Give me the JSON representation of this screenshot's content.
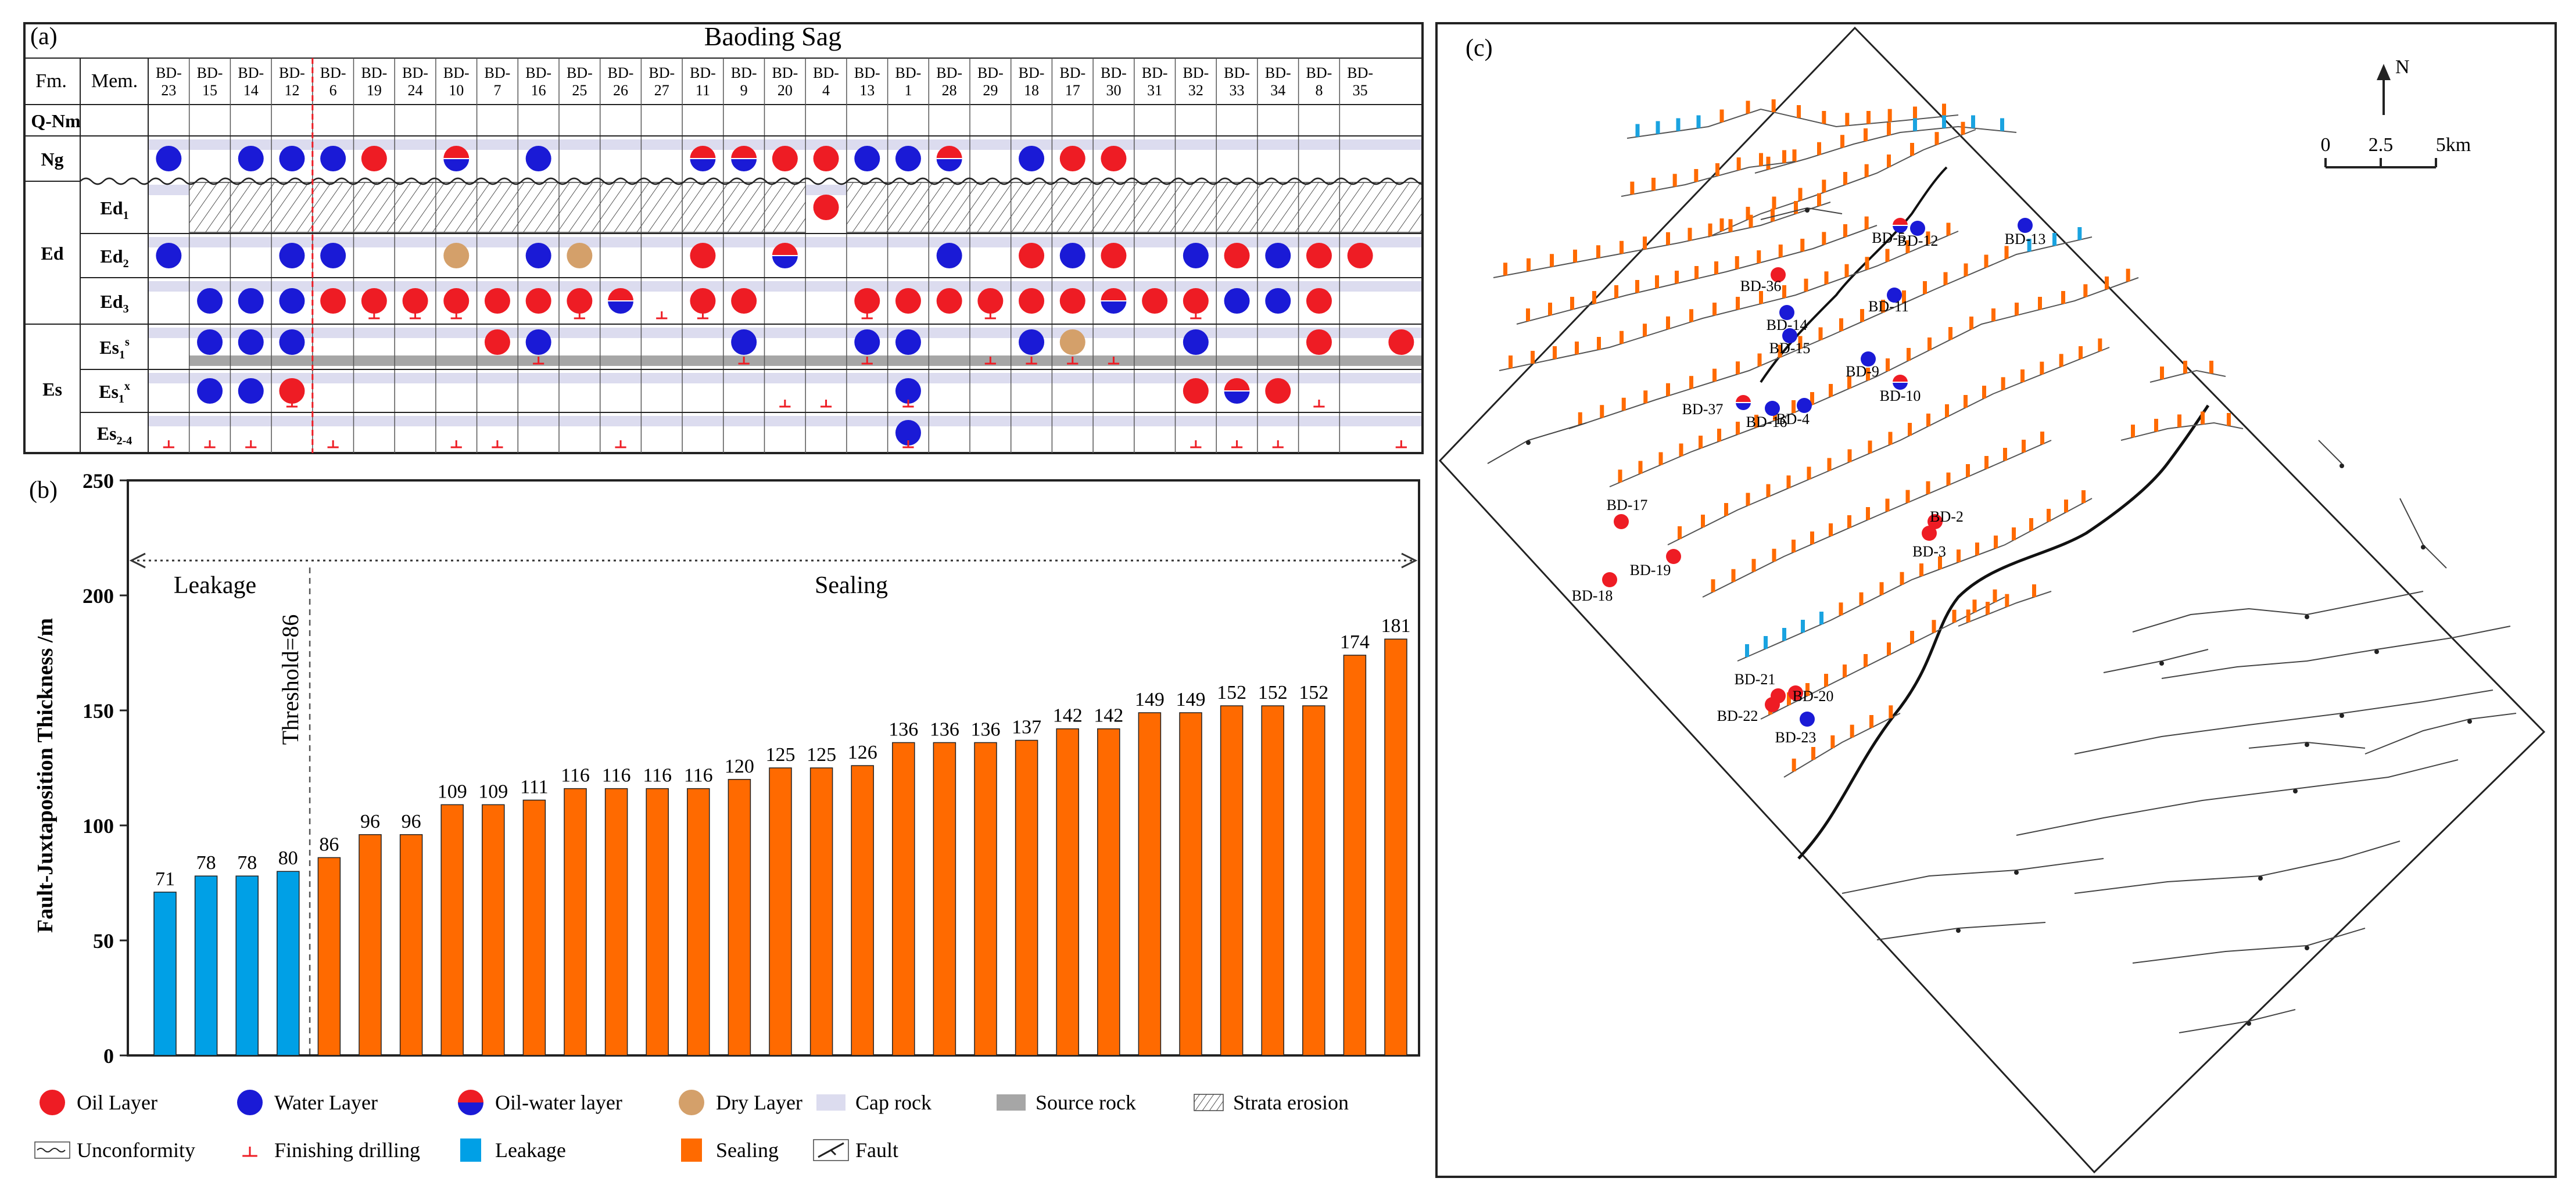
{
  "panel_a": {
    "label": "(a)",
    "title": "Baoding Sag",
    "header_fm": "Fm.",
    "header_mem": "Mem.",
    "wells": [
      "BD-23",
      "BD-15",
      "BD-14",
      "BD-12",
      "BD-6",
      "BD-19",
      "BD-24",
      "BD-10",
      "BD-7",
      "BD-16",
      "BD-25",
      "BD-26",
      "BD-27",
      "BD-11",
      "BD-9",
      "BD-20",
      "BD-4",
      "BD-13",
      "BD-1",
      "BD-28",
      "BD-29",
      "BD-18",
      "BD-17",
      "BD-30",
      "BD-31",
      "BD-32",
      "BD-33",
      "BD-34",
      "BD-8",
      "BD-35"
    ],
    "rows": [
      {
        "fm": "Q-Nm",
        "mem": ""
      },
      {
        "fm": "Ng",
        "mem": ""
      },
      {
        "fm": "",
        "mem": "Ed1"
      },
      {
        "fm": "Ed",
        "mem": "Ed2"
      },
      {
        "fm": "",
        "mem": "Ed3"
      },
      {
        "fm": "",
        "mem": "Es1s"
      },
      {
        "fm": "Es",
        "mem": "Es1x"
      },
      {
        "fm": "",
        "mem": "Es2-4"
      }
    ],
    "symbols": [
      {
        "row": 1,
        "col": 0,
        "t": "water"
      },
      {
        "row": 1,
        "col": 2,
        "t": "water"
      },
      {
        "row": 1,
        "col": 3,
        "t": "water"
      },
      {
        "row": 1,
        "col": 4,
        "t": "water"
      },
      {
        "row": 1,
        "col": 5,
        "t": "oil"
      },
      {
        "row": 1,
        "col": 7,
        "t": "mix"
      },
      {
        "row": 1,
        "col": 9,
        "t": "water"
      },
      {
        "row": 1,
        "col": 13,
        "t": "mix"
      },
      {
        "row": 1,
        "col": 14,
        "t": "mix"
      },
      {
        "row": 1,
        "col": 15,
        "t": "oil"
      },
      {
        "row": 1,
        "col": 16,
        "t": "oil"
      },
      {
        "row": 1,
        "col": 17,
        "t": "water"
      },
      {
        "row": 1,
        "col": 18,
        "t": "water"
      },
      {
        "row": 1,
        "col": 19,
        "t": "mix"
      },
      {
        "row": 1,
        "col": 21,
        "t": "water"
      },
      {
        "row": 1,
        "col": 22,
        "t": "oil"
      },
      {
        "row": 1,
        "col": 23,
        "t": "oil"
      },
      {
        "row": 2,
        "col": 16,
        "t": "oil"
      },
      {
        "row": 3,
        "col": 0,
        "t": "water"
      },
      {
        "row": 3,
        "col": 3,
        "t": "water"
      },
      {
        "row": 3,
        "col": 4,
        "t": "water"
      },
      {
        "row": 3,
        "col": 7,
        "t": "dry"
      },
      {
        "row": 3,
        "col": 9,
        "t": "water"
      },
      {
        "row": 3,
        "col": 10,
        "t": "dry"
      },
      {
        "row": 3,
        "col": 13,
        "t": "oil"
      },
      {
        "row": 3,
        "col": 15,
        "t": "mix"
      },
      {
        "row": 3,
        "col": 19,
        "t": "water"
      },
      {
        "row": 3,
        "col": 21,
        "t": "oil"
      },
      {
        "row": 3,
        "col": 22,
        "t": "water"
      },
      {
        "row": 3,
        "col": 23,
        "t": "oil"
      },
      {
        "row": 3,
        "col": 25,
        "t": "water"
      },
      {
        "row": 3,
        "col": 26,
        "t": "oil"
      },
      {
        "row": 3,
        "col": 27,
        "t": "water"
      },
      {
        "row": 3,
        "col": 28,
        "t": "oil"
      },
      {
        "row": 3,
        "col": 29,
        "t": "oil"
      },
      {
        "row": 4,
        "col": 1,
        "t": "water"
      },
      {
        "row": 4,
        "col": 2,
        "t": "water"
      },
      {
        "row": 4,
        "col": 3,
        "t": "water"
      },
      {
        "row": 4,
        "col": 4,
        "t": "oil"
      },
      {
        "row": 4,
        "col": 5,
        "t": "oil"
      },
      {
        "row": 4,
        "col": 6,
        "t": "oil"
      },
      {
        "row": 4,
        "col": 7,
        "t": "oil"
      },
      {
        "row": 4,
        "col": 8,
        "t": "oil"
      },
      {
        "row": 4,
        "col": 9,
        "t": "oil"
      },
      {
        "row": 4,
        "col": 10,
        "t": "oil"
      },
      {
        "row": 4,
        "col": 11,
        "t": "mix"
      },
      {
        "row": 4,
        "col": 13,
        "t": "oil"
      },
      {
        "row": 4,
        "col": 14,
        "t": "oil"
      },
      {
        "row": 4,
        "col": 17,
        "t": "oil"
      },
      {
        "row": 4,
        "col": 18,
        "t": "oil"
      },
      {
        "row": 4,
        "col": 19,
        "t": "oil"
      },
      {
        "row": 4,
        "col": 20,
        "t": "oil"
      },
      {
        "row": 4,
        "col": 21,
        "t": "oil"
      },
      {
        "row": 4,
        "col": 22,
        "t": "oil"
      },
      {
        "row": 4,
        "col": 23,
        "t": "mix"
      },
      {
        "row": 4,
        "col": 24,
        "t": "oil"
      },
      {
        "row": 4,
        "col": 25,
        "t": "oil"
      },
      {
        "row": 4,
        "col": 26,
        "t": "water"
      },
      {
        "row": 4,
        "col": 27,
        "t": "water"
      },
      {
        "row": 4,
        "col": 28,
        "t": "oil"
      },
      {
        "row": 5,
        "col": 1,
        "t": "water"
      },
      {
        "row": 5,
        "col": 2,
        "t": "water"
      },
      {
        "row": 5,
        "col": 3,
        "t": "water"
      },
      {
        "row": 5,
        "col": 8,
        "t": "oil"
      },
      {
        "row": 5,
        "col": 9,
        "t": "water"
      },
      {
        "row": 5,
        "col": 14,
        "t": "water"
      },
      {
        "row": 5,
        "col": 17,
        "t": "water"
      },
      {
        "row": 5,
        "col": 18,
        "t": "water"
      },
      {
        "row": 5,
        "col": 21,
        "t": "water"
      },
      {
        "row": 5,
        "col": 22,
        "t": "dry"
      },
      {
        "row": 5,
        "col": 25,
        "t": "water"
      },
      {
        "row": 5,
        "col": 28,
        "t": "oil"
      },
      {
        "row": 5,
        "col": 30,
        "t": "oil"
      },
      {
        "row": 6,
        "col": 1,
        "t": "water"
      },
      {
        "row": 6,
        "col": 2,
        "t": "water"
      },
      {
        "row": 6,
        "col": 3,
        "t": "oil"
      },
      {
        "row": 6,
        "col": 18,
        "t": "water"
      },
      {
        "row": 6,
        "col": 25,
        "t": "oil"
      },
      {
        "row": 6,
        "col": 26,
        "t": "mix"
      },
      {
        "row": 6,
        "col": 27,
        "t": "oil"
      },
      {
        "row": 7,
        "col": 18,
        "t": "water"
      }
    ],
    "drill_marks": [
      {
        "row": 4,
        "col": 5
      },
      {
        "row": 4,
        "col": 6
      },
      {
        "row": 4,
        "col": 7
      },
      {
        "row": 4,
        "col": 10
      },
      {
        "row": 4,
        "col": 12
      },
      {
        "row": 4,
        "col": 13
      },
      {
        "row": 4,
        "col": 17
      },
      {
        "row": 4,
        "col": 20
      },
      {
        "row": 4,
        "col": 25
      },
      {
        "row": 5,
        "col": 9
      },
      {
        "row": 5,
        "col": 14
      },
      {
        "row": 5,
        "col": 17
      },
      {
        "row": 5,
        "col": 20
      },
      {
        "row": 5,
        "col": 21
      },
      {
        "row": 5,
        "col": 22
      },
      {
        "row": 5,
        "col": 23
      },
      {
        "row": 6,
        "col": 3
      },
      {
        "row": 6,
        "col": 15
      },
      {
        "row": 6,
        "col": 16
      },
      {
        "row": 6,
        "col": 18
      },
      {
        "row": 6,
        "col": 28
      },
      {
        "row": 7,
        "col": 0
      },
      {
        "row": 7,
        "col": 1
      },
      {
        "row": 7,
        "col": 2
      },
      {
        "row": 7,
        "col": 4
      },
      {
        "row": 7,
        "col": 7
      },
      {
        "row": 7,
        "col": 8
      },
      {
        "row": 7,
        "col": 11
      },
      {
        "row": 7,
        "col": 18
      },
      {
        "row": 7,
        "col": 25
      },
      {
        "row": 7,
        "col": 26
      },
      {
        "row": 7,
        "col": 27
      },
      {
        "row": 7,
        "col": 30
      }
    ]
  },
  "chart_data": {
    "type": "bar",
    "panel_label": "(b)",
    "ylabel": "Fault-Juxtaposition Thickness /m",
    "xlabel": "",
    "ylim": [
      0,
      250
    ],
    "yticks": [
      0,
      50,
      100,
      150,
      200,
      250
    ],
    "threshold": 86,
    "threshold_label": "Threshold=86",
    "region_left": "Leakage",
    "region_right": "Sealing",
    "series": [
      {
        "name": "Leakage",
        "color": "#00a0e6",
        "values": [
          71,
          78,
          78,
          80
        ]
      },
      {
        "name": "Sealing",
        "color": "#ff6a00",
        "values": [
          86,
          96,
          96,
          109,
          109,
          111,
          116,
          116,
          116,
          116,
          120,
          125,
          125,
          126,
          136,
          136,
          136,
          137,
          142,
          142,
          149,
          149,
          152,
          152,
          152,
          174,
          181
        ]
      }
    ]
  },
  "panel_c": {
    "label": "(c)",
    "north": "N",
    "scale_labels": [
      "0",
      "2.5",
      "5km"
    ],
    "wells": [
      {
        "name": "BD-5",
        "t": "mix"
      },
      {
        "name": "BD-12",
        "t": "water"
      },
      {
        "name": "BD-13",
        "t": "water"
      },
      {
        "name": "BD-36",
        "t": "oil"
      },
      {
        "name": "BD-11",
        "t": "water"
      },
      {
        "name": "BD-14",
        "t": "water"
      },
      {
        "name": "BD-15",
        "t": "water"
      },
      {
        "name": "BD-9",
        "t": "water"
      },
      {
        "name": "BD-37",
        "t": "mix"
      },
      {
        "name": "BD-16",
        "t": "water"
      },
      {
        "name": "BD-4",
        "t": "water"
      },
      {
        "name": "BD-10",
        "t": "mix"
      },
      {
        "name": "BD-17",
        "t": "oil"
      },
      {
        "name": "BD-2",
        "t": "oil"
      },
      {
        "name": "BD-3",
        "t": "oil"
      },
      {
        "name": "BD-19",
        "t": "oil"
      },
      {
        "name": "BD-18",
        "t": "oil"
      },
      {
        "name": "BD-21",
        "t": "oil"
      },
      {
        "name": "BD-20",
        "t": "oil"
      },
      {
        "name": "BD-22",
        "t": "oil"
      },
      {
        "name": "BD-23",
        "t": "water"
      }
    ]
  },
  "legend": {
    "items": [
      {
        "key": "oil",
        "label": "Oil Layer"
      },
      {
        "key": "water",
        "label": "Water Layer"
      },
      {
        "key": "mix",
        "label": "Oil-water layer"
      },
      {
        "key": "dry",
        "label": "Dry Layer"
      },
      {
        "key": "cap",
        "label": "Cap rock"
      },
      {
        "key": "source",
        "label": "Source rock"
      },
      {
        "key": "erosion",
        "label": "Strata erosion"
      },
      {
        "key": "unconf",
        "label": "Unconformity"
      },
      {
        "key": "drill",
        "label": "Finishing drilling"
      },
      {
        "key": "leak",
        "label": "Leakage"
      },
      {
        "key": "seal",
        "label": "Sealing"
      },
      {
        "key": "fault",
        "label": "Fault"
      }
    ]
  },
  "colors": {
    "oil": "#ee1c24",
    "water": "#1a1ad6",
    "dry": "#d4a06a",
    "cap": "#dcdcef",
    "source": "#a6a6a6",
    "leak": "#00a0e6",
    "seal": "#ff6a00"
  }
}
